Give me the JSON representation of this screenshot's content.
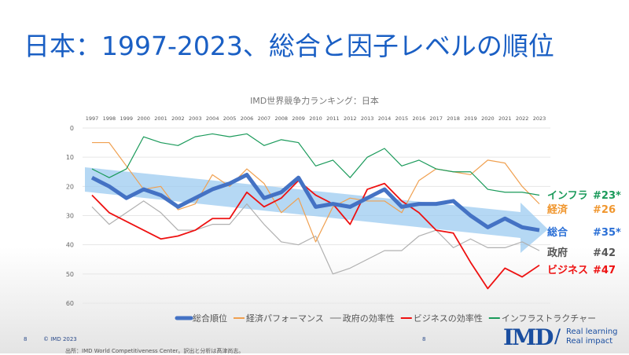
{
  "slide": {
    "title": "日本：1997-2023、総合と因子レベルの順位",
    "page_left": "8",
    "copyright": "© IMD 2023",
    "page_center": "8",
    "source": "出所：IMD World Competitiveness Center。訳出と分析は髙津尚志。",
    "logo": "IMD",
    "tagline1": "Real learning",
    "tagline2": "Real impact"
  },
  "labels": [
    {
      "name": "インフラ",
      "rank": "#23*",
      "color": "#1a9a5a"
    },
    {
      "name": "経済",
      "rank": "#26",
      "color": "#f0962e"
    },
    {
      "name": "総合",
      "rank": "#35*",
      "color": "#2a6fd6"
    },
    {
      "name": "政府",
      "rank": "#42",
      "color": "#555555"
    },
    {
      "name": "ビジネス",
      "rank": "#47",
      "color": "#ee1111"
    }
  ],
  "chart_data": {
    "type": "line",
    "title": "IMD世界競争力ランキング：日本",
    "x": [
      "1997",
      "1998",
      "1999",
      "2000",
      "2001",
      "2002",
      "2003",
      "2004",
      "2005",
      "2006",
      "2007",
      "2008",
      "2009",
      "2010",
      "2011",
      "2012",
      "2013",
      "2014",
      "2015",
      "2016",
      "2017",
      "2018",
      "2019",
      "2020",
      "2021",
      "2022",
      "2023"
    ],
    "yticks": [
      0,
      10,
      20,
      30,
      40,
      50,
      60
    ],
    "ylim": [
      0,
      60
    ],
    "y_inverted": true,
    "series": [
      {
        "name": "総合順位",
        "color": "#4472c4",
        "values": [
          17,
          20,
          24,
          21,
          23,
          27,
          24,
          21,
          19,
          16,
          24,
          22,
          17,
          27,
          26,
          27,
          24,
          21,
          27,
          26,
          26,
          25,
          30,
          34,
          31,
          34,
          35
        ]
      },
      {
        "name": "経済パフォーマンス",
        "color": "#f0a050",
        "values": [
          5,
          5,
          13,
          21,
          20,
          28,
          26,
          16,
          20,
          14,
          19,
          29,
          24,
          39,
          27,
          24,
          25,
          25,
          29,
          18,
          14,
          15,
          16,
          11,
          12,
          20,
          26
        ]
      },
      {
        "name": "政府の効率性",
        "color": "#b0b0b0",
        "values": [
          27,
          33,
          29,
          25,
          29,
          35,
          35,
          33,
          33,
          26,
          33,
          39,
          40,
          37,
          50,
          48,
          45,
          42,
          42,
          37,
          35,
          41,
          38,
          41,
          41,
          39,
          42
        ]
      },
      {
        "name": "ビジネスの効率性",
        "color": "#ee1111",
        "values": [
          23,
          29,
          32,
          35,
          38,
          37,
          35,
          31,
          31,
          22,
          27,
          24,
          18,
          23,
          26,
          33,
          21,
          19,
          25,
          29,
          35,
          36,
          46,
          55,
          48,
          51,
          47
        ]
      },
      {
        "name": "インフラストラクチャー",
        "color": "#1a9a5a",
        "values": [
          14,
          17,
          14,
          3,
          5,
          6,
          3,
          2,
          3,
          2,
          6,
          4,
          5,
          13,
          11,
          17,
          10,
          7,
          13,
          11,
          14,
          15,
          15,
          21,
          22,
          22,
          23
        ]
      }
    ],
    "legend": "bottom"
  }
}
